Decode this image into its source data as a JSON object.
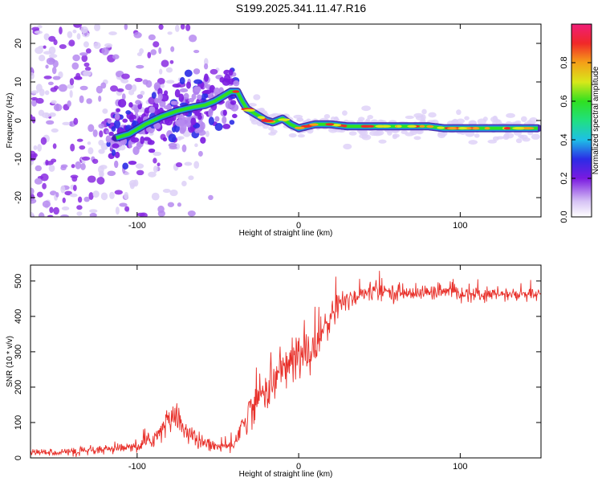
{
  "title": "S199.2025.341.11.47.R16",
  "chart_data": [
    {
      "type": "heatmap",
      "title": "S199.2025.341.11.47.R16",
      "xlabel": "Height of straight line (km)",
      "ylabel": "Frequency (Hz)",
      "xlim": [
        -166,
        150
      ],
      "ylim": [
        -25,
        25
      ],
      "xticks": [
        -100,
        0,
        100
      ],
      "yticks": [
        -20,
        -10,
        0,
        10,
        20
      ],
      "colorbar": {
        "label": "Normalized spectral amplitude",
        "range": [
          0,
          1
        ],
        "ticks": [
          "0.0",
          "0.2",
          "0.4",
          "0.6",
          "0.8"
        ]
      },
      "ridge": {
        "x": [
          -113,
          -105,
          -95,
          -85,
          -75,
          -65,
          -58,
          -52,
          -46,
          -42,
          -38,
          -35,
          -32,
          -28,
          -24,
          -20,
          -16,
          -10,
          -5,
          0,
          5,
          10,
          20,
          30,
          40,
          50,
          60,
          70,
          80,
          90,
          100,
          110,
          120,
          130,
          140,
          148
        ],
        "y": [
          -4.5,
          -3.5,
          -1,
          1,
          2.5,
          3.5,
          4,
          5,
          6.5,
          7.5,
          7.5,
          5,
          3,
          2,
          1,
          0,
          -0.5,
          0.5,
          -1,
          -2,
          -1.5,
          -1,
          -1,
          -1.5,
          -1.5,
          -1.5,
          -1.5,
          -1.5,
          -1.5,
          -2,
          -2,
          -2,
          -2,
          -2,
          -2,
          -2
        ]
      },
      "scatter_region": {
        "x": [
          -166,
          -50
        ],
        "y": [
          -25,
          25
        ]
      }
    },
    {
      "type": "line",
      "xlabel": "Height of straight line (km)",
      "ylabel": "SNR (10 * v/v)",
      "xlim": [
        -166,
        150
      ],
      "ylim": [
        0,
        545
      ],
      "xticks": [
        -100,
        0,
        100
      ],
      "yticks": [
        0,
        100,
        200,
        300,
        400,
        500
      ],
      "color": "#e8302a",
      "trend": {
        "x": [
          -166,
          -130,
          -100,
          -92,
          -85,
          -80,
          -76,
          -72,
          -65,
          -58,
          -52,
          -46,
          -42,
          -38,
          -33,
          -28,
          -22,
          -15,
          -10,
          -5,
          0,
          5,
          10,
          15,
          20,
          25,
          30,
          40,
          50,
          60,
          70,
          80,
          90,
          100,
          110,
          120,
          130,
          140,
          150
        ],
        "y": [
          15,
          18,
          30,
          50,
          75,
          110,
          120,
          90,
          55,
          40,
          35,
          30,
          35,
          60,
          110,
          150,
          185,
          220,
          250,
          275,
          285,
          295,
          320,
          360,
          400,
          430,
          450,
          465,
          470,
          468,
          465,
          468,
          470,
          465,
          463,
          462,
          462,
          460,
          462
        ]
      },
      "noise": {
        "x": [
          -166,
          -100,
          -80,
          -50,
          -30,
          -10,
          10,
          30,
          60,
          150
        ],
        "y": [
          8,
          12,
          35,
          12,
          40,
          60,
          65,
          30,
          18,
          15
        ]
      }
    }
  ]
}
